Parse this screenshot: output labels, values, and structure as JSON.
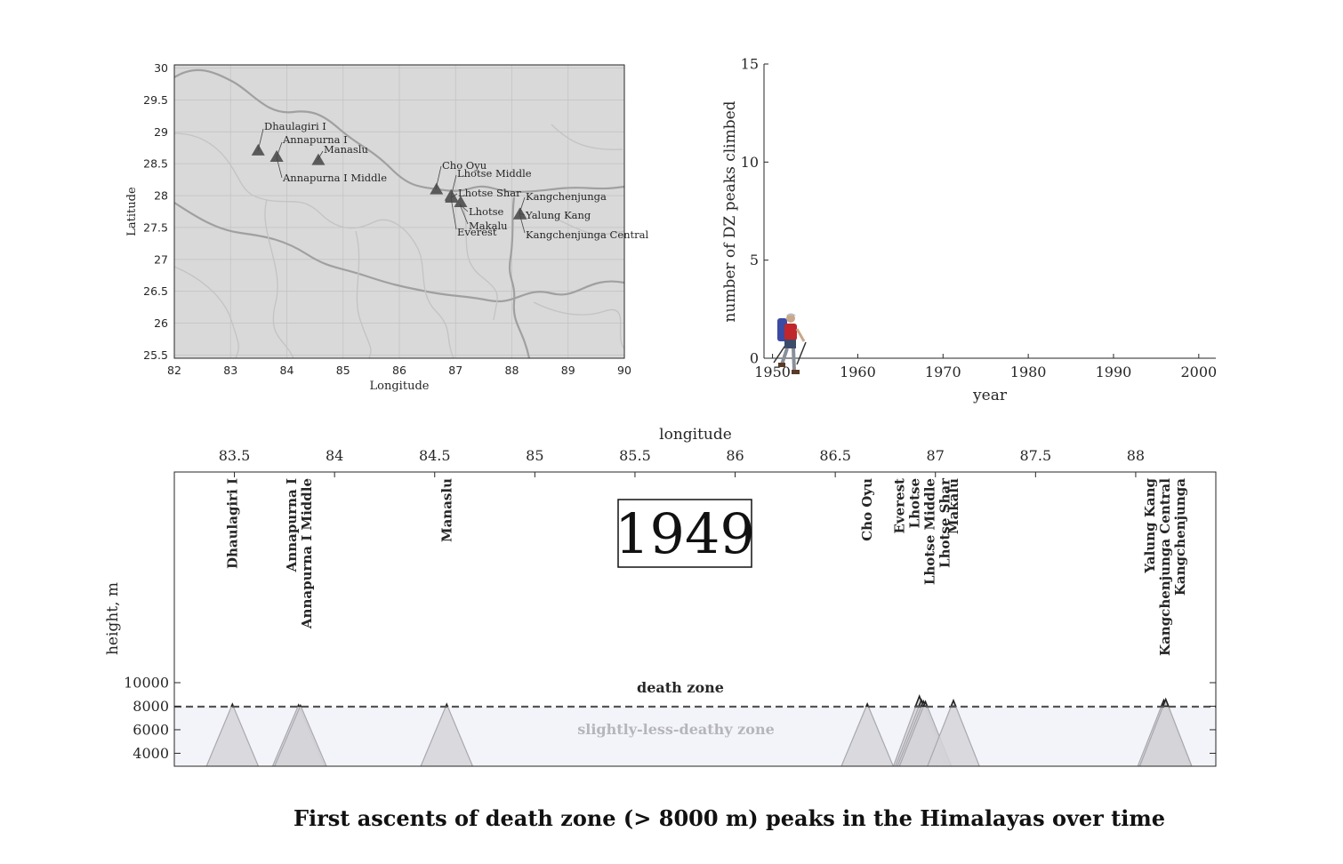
{
  "title": "First ascents of death zone (> 8000 m) peaks in the Himalayas over time",
  "chart_data": [
    {
      "type": "scatter",
      "panel": "map",
      "xlabel": "Longitude",
      "ylabel": "Latitude",
      "xlim": [
        82,
        90
      ],
      "ylim": [
        25.45,
        30.05
      ],
      "xticks": [
        "82",
        "83",
        "84",
        "85",
        "86",
        "87",
        "88",
        "89",
        "90"
      ],
      "yticks": [
        "25.5",
        "26",
        "26.5",
        "27",
        "27.5",
        "28",
        "28.5",
        "29",
        "29.5",
        "30"
      ],
      "grid": true,
      "background_color": "#d9d9d9",
      "marker_color": "#5a5a5a",
      "points": [
        {
          "name": "Dhaulagiri I",
          "lon": 83.49,
          "lat": 28.7
        },
        {
          "name": "Annapurna I",
          "lon": 83.82,
          "lat": 28.6
        },
        {
          "name": "Annapurna I Middle",
          "lon": 83.82,
          "lat": 28.6
        },
        {
          "name": "Manaslu",
          "lon": 84.56,
          "lat": 28.55
        },
        {
          "name": "Cho Oyu",
          "lon": 86.66,
          "lat": 28.09
        },
        {
          "name": "Lhotse Middle",
          "lon": 86.93,
          "lat": 27.97
        },
        {
          "name": "Lhotse Shar",
          "lon": 86.94,
          "lat": 27.96
        },
        {
          "name": "Lhotse",
          "lon": 86.93,
          "lat": 27.96
        },
        {
          "name": "Everest",
          "lon": 86.92,
          "lat": 27.99
        },
        {
          "name": "Makalu",
          "lon": 87.09,
          "lat": 27.89
        },
        {
          "name": "Kangchenjunga",
          "lon": 88.15,
          "lat": 27.7
        },
        {
          "name": "Yalung Kang",
          "lon": 88.14,
          "lat": 27.7
        },
        {
          "name": "Kangchenjunga Central",
          "lon": 88.15,
          "lat": 27.7
        }
      ]
    },
    {
      "type": "line",
      "panel": "count",
      "xlabel": "year",
      "ylabel": "number of DZ peaks climbed",
      "xlim": [
        1949,
        2002
      ],
      "ylim": [
        0,
        15
      ],
      "xticks": [
        "1950",
        "1960",
        "1970",
        "1980",
        "1990",
        "2000"
      ],
      "yticks": [
        "0",
        "5",
        "10",
        "15"
      ],
      "x": [
        1949
      ],
      "y": [
        0
      ]
    },
    {
      "type": "area",
      "panel": "heights",
      "xlabel": "longitude",
      "ylabel": "height, m",
      "xlim": [
        83.2,
        88.4
      ],
      "ylim": [
        2900,
        27900
      ],
      "xticks": [
        "83.5",
        "84",
        "84.5",
        "85",
        "85.5",
        "86",
        "86.5",
        "87",
        "87.5",
        "88"
      ],
      "yticks": [
        "4000",
        "6000",
        "8000",
        "10000"
      ],
      "year": "1949",
      "death_zone_label": "death zone",
      "lower_zone_label": "slightly-less-deathy zone",
      "threshold": 8000,
      "peak_color": "#d4d4d8",
      "lower_zone_color": "#f3f4fa",
      "peaks": [
        {
          "name": "Dhaulagiri I",
          "lon": 83.49,
          "height": 8167
        },
        {
          "name": "Annapurna I",
          "lon": 83.82,
          "height": 8091
        },
        {
          "name": "Annapurna I Middle",
          "lon": 83.83,
          "height": 8051
        },
        {
          "name": "Manaslu",
          "lon": 84.56,
          "height": 8163
        },
        {
          "name": "Cho Oyu",
          "lon": 86.66,
          "height": 8188
        },
        {
          "name": "Everest",
          "lon": 86.92,
          "height": 8849
        },
        {
          "name": "Lhotse",
          "lon": 86.93,
          "height": 8516
        },
        {
          "name": "Lhotse Middle",
          "lon": 86.94,
          "height": 8414
        },
        {
          "name": "Lhotse Shar",
          "lon": 86.95,
          "height": 8383
        },
        {
          "name": "Makalu",
          "lon": 87.09,
          "height": 8485
        },
        {
          "name": "Yalung Kang",
          "lon": 88.14,
          "height": 8505
        },
        {
          "name": "Kangchenjunga Central",
          "lon": 88.15,
          "height": 8482
        },
        {
          "name": "Kangchenjunga",
          "lon": 88.15,
          "height": 8586
        }
      ]
    }
  ]
}
